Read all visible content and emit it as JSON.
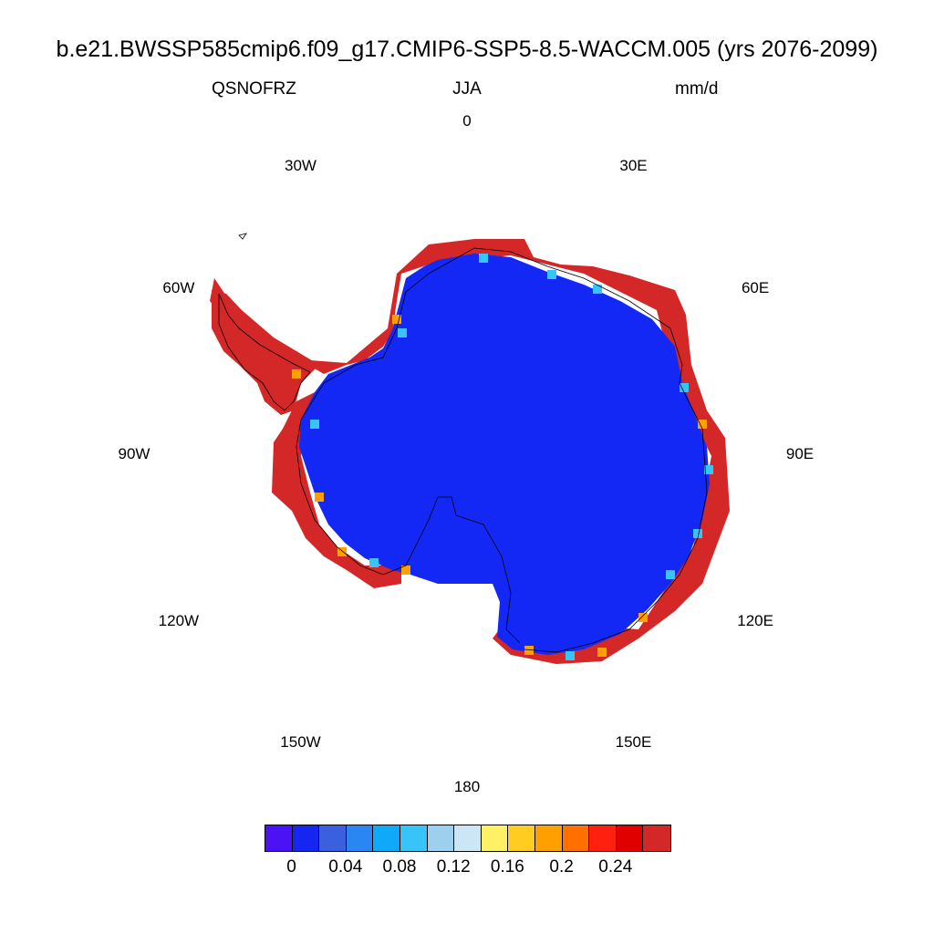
{
  "header": {
    "title": "b.e21.BWSSP585cmip6.f09_g17.CMIP6-SSP5-8.5-WACCM.005 (yrs 2076-2099)",
    "variable": "QSNOFRZ",
    "season": "JJA",
    "units": "mm/d"
  },
  "longitude_labels": [
    {
      "label": "0",
      "lon": 0
    },
    {
      "label": "30E",
      "lon": 30
    },
    {
      "label": "60E",
      "lon": 60
    },
    {
      "label": "90E",
      "lon": 90
    },
    {
      "label": "120E",
      "lon": 120
    },
    {
      "label": "150E",
      "lon": 150
    },
    {
      "label": "180",
      "lon": 180
    },
    {
      "label": "150W",
      "lon": -150
    },
    {
      "label": "120W",
      "lon": -120
    },
    {
      "label": "90W",
      "lon": -90
    },
    {
      "label": "60W",
      "lon": -60
    },
    {
      "label": "30W",
      "lon": -30
    }
  ],
  "colorbar": {
    "colors": [
      "#4b12f5",
      "#1426f0",
      "#3a60e0",
      "#2a86f2",
      "#10a8f8",
      "#38c4f8",
      "#9cd0ee",
      "#cce6f6",
      "#fff066",
      "#ffcc22",
      "#ffa000",
      "#ff7000",
      "#ff2010",
      "#e00000",
      "#d42828"
    ],
    "labels": [
      "0",
      "0.04",
      "0.08",
      "0.12",
      "0.16",
      "0.2",
      "0.24"
    ]
  },
  "map_colors": {
    "interior": "#1428f5",
    "coast_high": "#d42828",
    "coast_mid": "#ffa000",
    "coast_low": "#38c4f8",
    "coastline": "#000000"
  }
}
